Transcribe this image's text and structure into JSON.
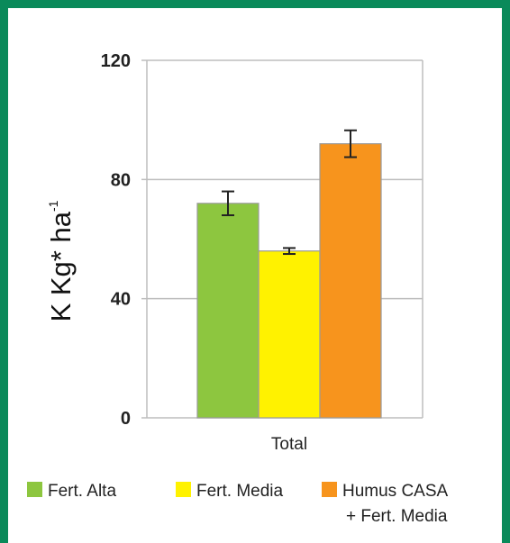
{
  "colors": {
    "frame": "#0a8a5a",
    "grid": "#bdbdbd",
    "bar_edge": "#9a9a9a",
    "error_bar": "#222222"
  },
  "chart_data": {
    "type": "bar",
    "categories": [
      "Total"
    ],
    "ylabel": "K Kg* ha",
    "ylabel_superscript": "-1",
    "ylim": [
      0,
      120
    ],
    "yticks": [
      0,
      40,
      80,
      120
    ],
    "grid": true,
    "legend_position": "bottom",
    "series": [
      {
        "name": "Fert. Alta",
        "color": "#8dc63f",
        "values": [
          72
        ],
        "error": [
          4
        ]
      },
      {
        "name": "Fert. Media",
        "color": "#fff200",
        "values": [
          56
        ],
        "error": [
          1
        ]
      },
      {
        "name": "Humus CASA",
        "name_line2": "+ Fert. Media",
        "color": "#f7941d",
        "values": [
          92
        ],
        "error": [
          4.5
        ]
      }
    ]
  }
}
